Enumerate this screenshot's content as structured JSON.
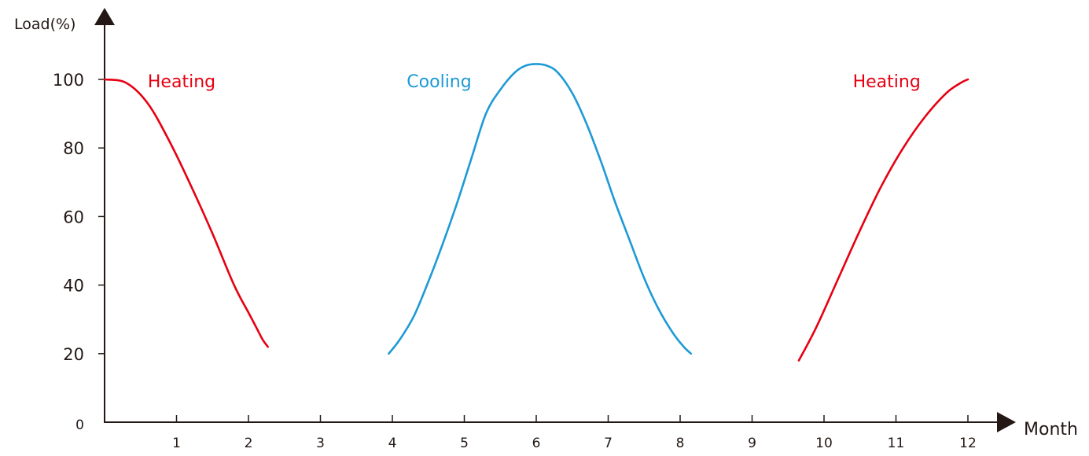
{
  "chart_data": {
    "type": "line",
    "title": "",
    "ylabel": "Load(%)",
    "xlabel": "Month",
    "xlim": [
      0,
      12.6
    ],
    "ylim": [
      0,
      100
    ],
    "x_ticks": [
      {
        "value": 1,
        "label": "1"
      },
      {
        "value": 2,
        "label": "2"
      },
      {
        "value": 3,
        "label": "3"
      },
      {
        "value": 4,
        "label": "4"
      },
      {
        "value": 5,
        "label": "5"
      },
      {
        "value": 6,
        "label": "6"
      },
      {
        "value": 7,
        "label": "7"
      },
      {
        "value": 8,
        "label": "8"
      },
      {
        "value": 9,
        "label": "9"
      },
      {
        "value": 10,
        "label": "10"
      },
      {
        "value": 11,
        "label": "11"
      },
      {
        "value": 12,
        "label": "12"
      }
    ],
    "y_ticks": [
      {
        "value": 0,
        "label": "0"
      },
      {
        "value": 20,
        "label": "20"
      },
      {
        "value": 40,
        "label": "40"
      },
      {
        "value": 60,
        "label": "60"
      },
      {
        "value": 80,
        "label": "80"
      },
      {
        "value": 100,
        "label": "100"
      }
    ],
    "grid": false,
    "series": [
      {
        "name": "Heating",
        "label": "Heating",
        "color": "#e60012",
        "x": [
          0.0,
          0.3,
          0.6,
          0.9,
          1.2,
          1.5,
          1.8,
          2.0,
          2.1,
          2.2,
          2.27
        ],
        "y": [
          100,
          99,
          93,
          82,
          69,
          55,
          40,
          32,
          28,
          24,
          22
        ]
      },
      {
        "name": "Cooling",
        "label": "Cooling",
        "color": "#1d9ad6",
        "x": [
          3.95,
          4.1,
          4.3,
          4.5,
          4.7,
          4.9,
          5.1,
          5.3,
          5.5,
          5.7,
          5.85,
          6.0,
          6.15,
          6.3,
          6.5,
          6.7,
          6.9,
          7.1,
          7.3,
          7.5,
          7.7,
          7.9,
          8.05,
          8.15
        ],
        "y": [
          20,
          24,
          31,
          41,
          52,
          64,
          77,
          90,
          97,
          102,
          104,
          104.5,
          104,
          102,
          96,
          87,
          76,
          64,
          53,
          42,
          33,
          26,
          22,
          20
        ]
      },
      {
        "name": "Heating",
        "label": "Heating",
        "color": "#e60012",
        "x": [
          9.65,
          9.9,
          10.2,
          10.5,
          10.8,
          11.1,
          11.4,
          11.7,
          11.9,
          12.0
        ],
        "y": [
          18,
          28,
          42,
          56,
          69,
          80,
          89,
          96,
          99,
          100
        ]
      }
    ],
    "annotations": [
      {
        "text": "Heating",
        "x": 0.6,
        "y": 100,
        "color": "#e60012"
      },
      {
        "text": "Cooling",
        "x": 4.2,
        "y": 100,
        "color": "#1d9ad6"
      },
      {
        "text": "Heating",
        "x": 10.4,
        "y": 100,
        "color": "#e60012"
      }
    ],
    "axis_color": "#231815"
  }
}
